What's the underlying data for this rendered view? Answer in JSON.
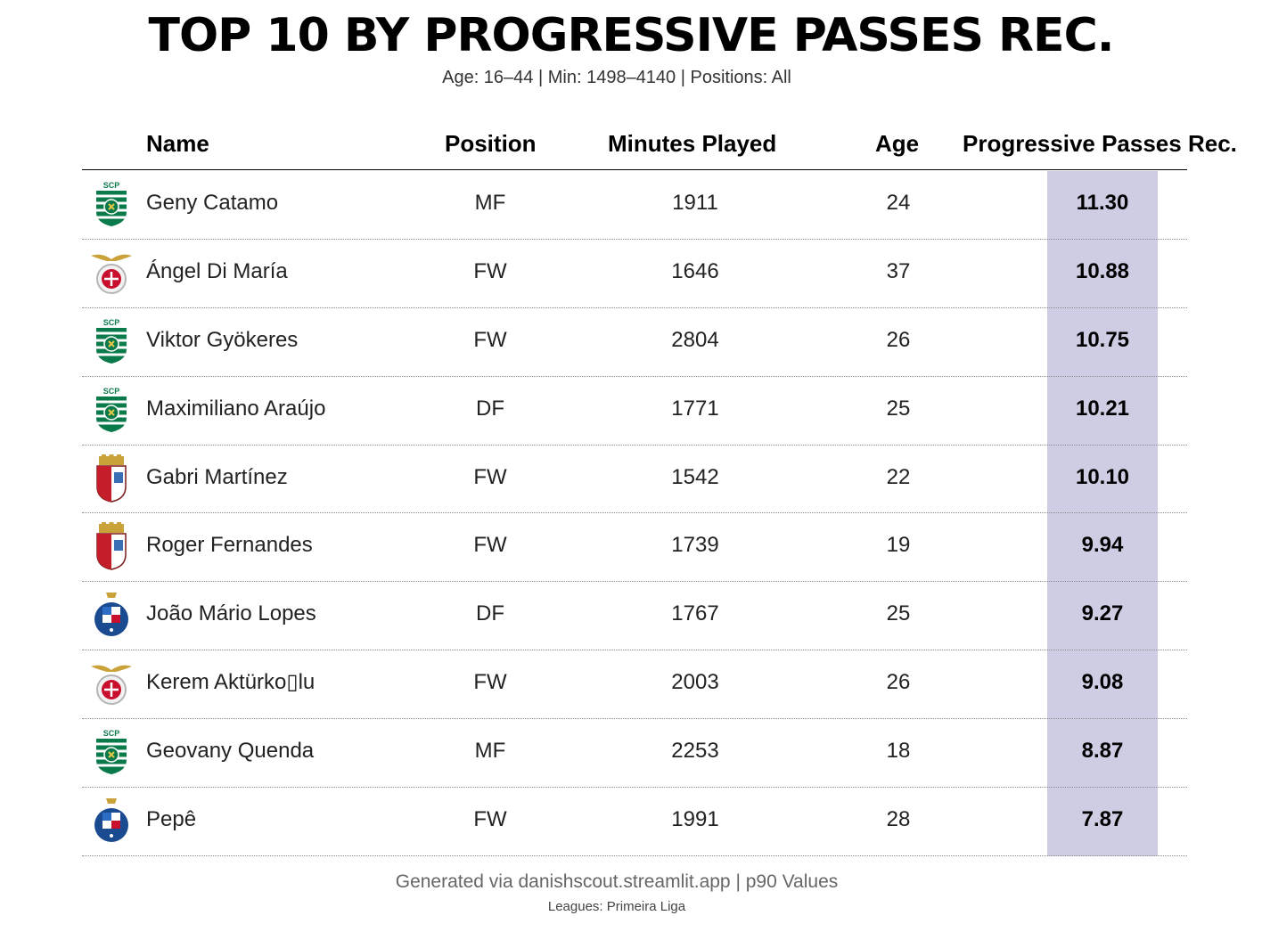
{
  "title": "TOP 10 BY PROGRESSIVE PASSES REC.",
  "subtitle": "Age: 16–44 | Min: 1498–4140 | Positions: All",
  "headers": {
    "name": "Name",
    "position": "Position",
    "minutes": "Minutes Played",
    "age": "Age",
    "metric": "Progressive Passes Rec."
  },
  "colors": {
    "highlight": "#cecde3",
    "sporting_green": "#0b7a4b",
    "benfica_red": "#c8102e",
    "braga_red": "#c41e2a",
    "porto_blue": "#1a4a8f"
  },
  "rows": [
    {
      "name": "Geny Catamo",
      "position": "MF",
      "minutes": "1911",
      "age": "24",
      "value": "11.30",
      "crest": "sporting-crest"
    },
    {
      "name": "Ángel Di María",
      "position": "FW",
      "minutes": "1646",
      "age": "37",
      "value": "10.88",
      "crest": "benfica-crest"
    },
    {
      "name": "Viktor Gyökeres",
      "position": "FW",
      "minutes": "2804",
      "age": "26",
      "value": "10.75",
      "crest": "sporting-crest"
    },
    {
      "name": "Maximiliano Araújo",
      "position": "DF",
      "minutes": "1771",
      "age": "25",
      "value": "10.21",
      "crest": "sporting-crest"
    },
    {
      "name": "Gabri Martínez",
      "position": "FW",
      "minutes": "1542",
      "age": "22",
      "value": "10.10",
      "crest": "braga-crest"
    },
    {
      "name": "Roger Fernandes",
      "position": "FW",
      "minutes": "1739",
      "age": "19",
      "value": "9.94",
      "crest": "braga-crest"
    },
    {
      "name": "João Mário Lopes",
      "position": "DF",
      "minutes": "1767",
      "age": "25",
      "value": "9.27",
      "crest": "porto-crest"
    },
    {
      "name": "Kerem Aktürko▯l​u",
      "position": "FW",
      "minutes": "2003",
      "age": "26",
      "value": "9.08",
      "crest": "benfica-crest"
    },
    {
      "name": "Geovany Quenda",
      "position": "MF",
      "minutes": "2253",
      "age": "18",
      "value": "8.87",
      "crest": "sporting-crest"
    },
    {
      "name": "Pepê",
      "position": "FW",
      "minutes": "1991",
      "age": "28",
      "value": "7.87",
      "crest": "porto-crest"
    }
  ],
  "footer": {
    "line1": "Generated via danishscout.streamlit.app | p90 Values",
    "line2": "Leagues: Primeira Liga"
  },
  "chart_data": {
    "type": "table",
    "title": "TOP 10 BY PROGRESSIVE PASSES REC.",
    "columns": [
      "Name",
      "Position",
      "Minutes Played",
      "Age",
      "Progressive Passes Rec."
    ],
    "rows": [
      [
        "Geny Catamo",
        "MF",
        1911,
        24,
        11.3
      ],
      [
        "Ángel Di María",
        "FW",
        1646,
        37,
        10.88
      ],
      [
        "Viktor Gyökeres",
        "FW",
        2804,
        26,
        10.75
      ],
      [
        "Maximiliano Araújo",
        "DF",
        1771,
        25,
        10.21
      ],
      [
        "Gabri Martínez",
        "FW",
        1542,
        22,
        10.1
      ],
      [
        "Roger Fernandes",
        "FW",
        1739,
        19,
        9.94
      ],
      [
        "João Mário Lopes",
        "DF",
        1767,
        25,
        9.27
      ],
      [
        "Kerem Aktürko▯l​u",
        "FW",
        2003,
        26,
        9.08
      ],
      [
        "Geovany Quenda",
        "MF",
        2253,
        18,
        8.87
      ],
      [
        "Pepê",
        "FW",
        1991,
        28,
        7.87
      ]
    ]
  }
}
